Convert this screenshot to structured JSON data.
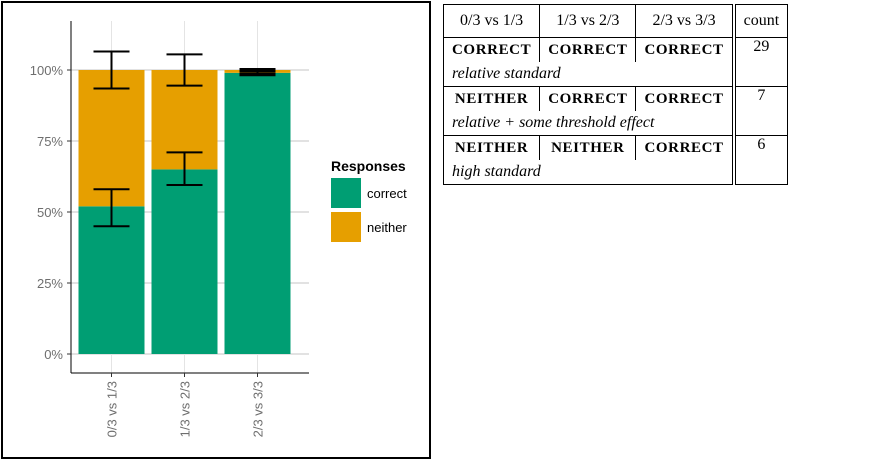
{
  "chart_data": {
    "type": "bar",
    "stacked": true,
    "categories": [
      "0/3 vs 1/3",
      "1/3 vs 2/3",
      "2/3 vs 3/3"
    ],
    "series": [
      {
        "name": "correct",
        "values": [
          52,
          65,
          99
        ],
        "color": "#009E73",
        "error_low": [
          45,
          59.5,
          98.5
        ],
        "error_high": [
          58,
          71,
          100
        ]
      },
      {
        "name": "neither",
        "values": [
          48,
          35,
          1
        ],
        "color": "#E69F00",
        "error_low": [
          93.5,
          94.5,
          null
        ],
        "error_high": [
          106.5,
          105.5,
          null
        ]
      }
    ],
    "y_ticks": [
      "0%",
      "25%",
      "50%",
      "75%",
      "100%"
    ],
    "ylim": [
      0,
      115
    ],
    "legend_title": "Responses",
    "legend_position": "right",
    "grid": true
  },
  "table": {
    "headers": [
      "0/3 vs 1/3",
      "1/3 vs 2/3",
      "2/3 vs 3/3",
      "count"
    ],
    "rows": [
      {
        "responses": [
          "CORRECT",
          "CORRECT",
          "CORRECT"
        ],
        "count": "29",
        "description": "relative standard"
      },
      {
        "responses": [
          "NEITHER",
          "CORRECT",
          "CORRECT"
        ],
        "count": "7",
        "description": "relative + some threshold effect"
      },
      {
        "responses": [
          "NEITHER",
          "NEITHER",
          "CORRECT"
        ],
        "count": "6",
        "description": "high standard"
      }
    ]
  }
}
